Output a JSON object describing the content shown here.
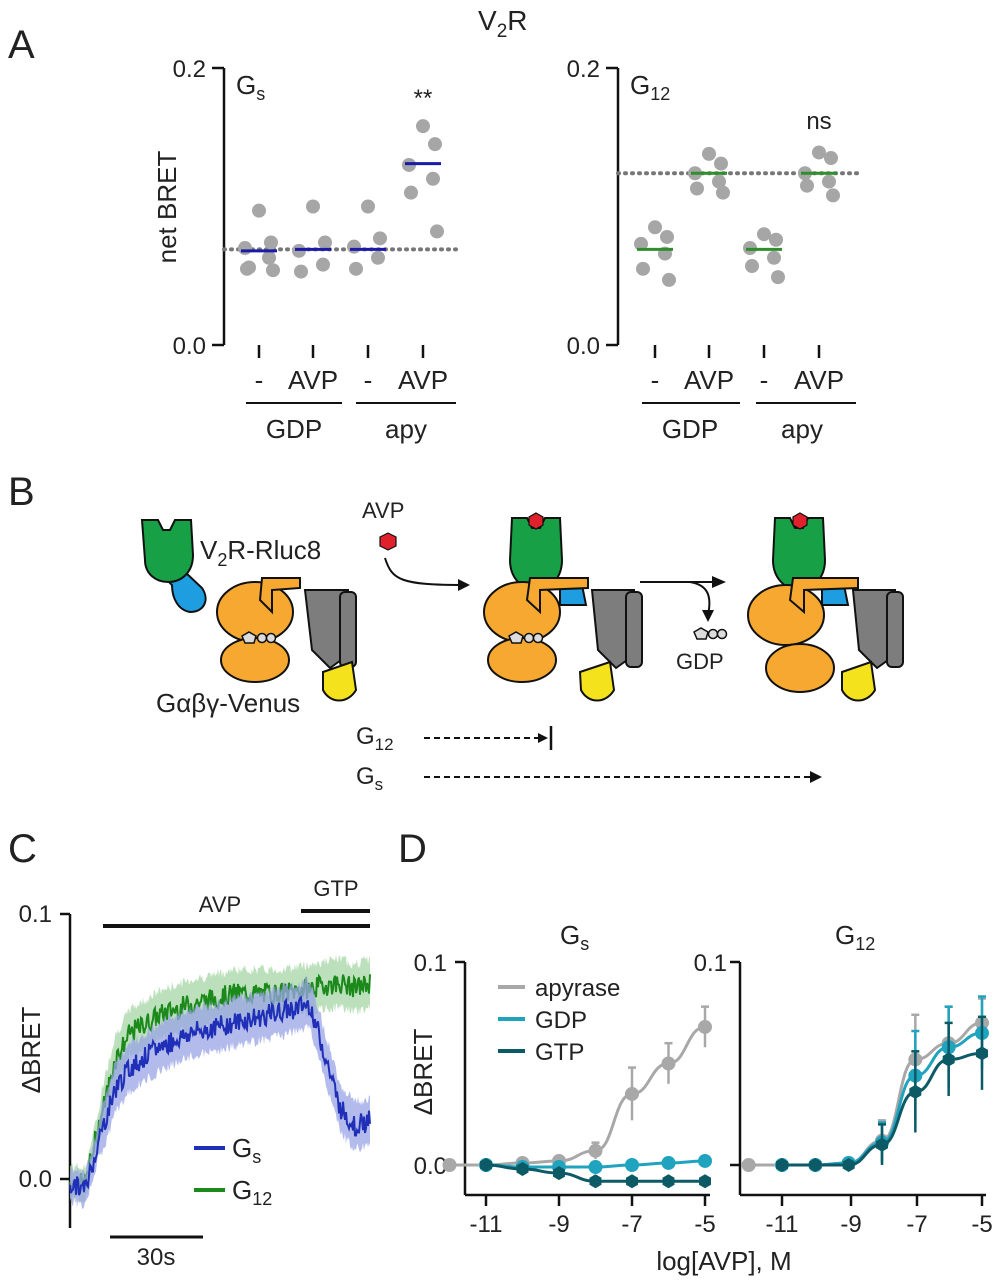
{
  "figure": {
    "panels": {
      "A": "A",
      "B": "B",
      "C": "C",
      "D": "D"
    },
    "panel_a_title": {
      "main": "V",
      "sub": "2",
      "rest": "R"
    },
    "colors": {
      "dots": "#a6a6a6",
      "gs_mean": "#1a1aa6",
      "g12_mean": "#2f8f2f",
      "gs_trace": "#1f2fb8",
      "gs_band": "#9aa4e6",
      "g12_trace": "#1b8a1b",
      "g12_band": "#a5d6a5",
      "apyrase": "#a8a8a8",
      "gdp": "#1fa3be",
      "gtp": "#0c5a66",
      "receptor": "#17a046",
      "rluc": "#1e9de0",
      "galpha": "#f7a830",
      "gbeta": "#7d7d7d",
      "venus": "#f4e21c",
      "avp": "#e0202a"
    }
  },
  "panel_a": {
    "ylabel": "net BRET",
    "yticks": [
      "0.0",
      "0.2"
    ],
    "x_labels": [
      "-",
      "AVP",
      "-",
      "AVP"
    ],
    "groups": [
      "GDP",
      "apy"
    ],
    "subplots": [
      {
        "name": "G",
        "sub": "s",
        "annotation": "**"
      },
      {
        "name": "G",
        "sub": "12",
        "annotation": "ns"
      }
    ]
  },
  "panel_b": {
    "receptor_label": {
      "a": "V",
      "sub": "2",
      "b": "R-Rluc8"
    },
    "g_label": "Gαβγ-Venus",
    "avp_label": "AVP",
    "gdp_label": "GDP",
    "g12_label": {
      "a": "G",
      "sub": "12"
    },
    "gs_label": {
      "a": "G",
      "sub": "s"
    }
  },
  "panel_c": {
    "ylabel": "ΔBRET",
    "yticks": [
      "0.0",
      "0.1"
    ],
    "avp_bar": "AVP",
    "gtp_bar": "GTP",
    "scale_bar": "30s",
    "legend": [
      {
        "name": "G",
        "sub": "s"
      },
      {
        "name": "G",
        "sub": "12"
      }
    ]
  },
  "panel_d": {
    "ylabel": "ΔBRET",
    "xlabel": "log[AVP], M",
    "yticks": [
      "0.0",
      "0.1"
    ],
    "xticks": [
      "-11",
      "-9",
      "-7",
      "-5"
    ],
    "subplots": [
      {
        "name": "G",
        "sub": "s"
      },
      {
        "name": "G",
        "sub": "12"
      }
    ],
    "legend": [
      "apyrase",
      "GDP",
      "GTP"
    ]
  },
  "chart_data": [
    {
      "panel": "A-left",
      "type": "scatter",
      "title": "Gs",
      "ylabel": "net BRET",
      "ylim": [
        0,
        0.2
      ],
      "categories": [
        "GDP -",
        "GDP AVP",
        "apy -",
        "apy AVP"
      ],
      "points": [
        [
          0.097,
          0.074,
          0.07,
          0.063,
          0.055,
          0.054,
          0.056
        ],
        [
          0.1,
          0.074,
          0.068,
          0.058,
          0.053
        ],
        [
          0.1,
          0.077,
          0.071,
          0.063,
          0.055
        ],
        [
          0.158,
          0.145,
          0.13,
          0.12,
          0.11,
          0.082
        ]
      ],
      "means": [
        0.068,
        0.069,
        0.069,
        0.131
      ],
      "baseline": 0.069
    },
    {
      "panel": "A-right",
      "type": "scatter",
      "title": "G12",
      "ylabel": "net BRET",
      "ylim": [
        0,
        0.2
      ],
      "categories": [
        "GDP -",
        "GDP AVP",
        "apy -",
        "apy AVP"
      ],
      "points": [
        [
          0.085,
          0.078,
          0.073,
          0.066,
          0.055,
          0.047
        ],
        [
          0.138,
          0.131,
          0.124,
          0.118,
          0.113,
          0.11
        ],
        [
          0.08,
          0.076,
          0.07,
          0.063,
          0.057,
          0.049
        ],
        [
          0.139,
          0.135,
          0.124,
          0.118,
          0.115,
          0.108
        ]
      ],
      "means": [
        0.069,
        0.124,
        0.069,
        0.124
      ],
      "baseline": 0.124
    },
    {
      "panel": "C",
      "type": "line",
      "ylabel": "ΔBRET",
      "ylim": [
        -0.015,
        0.1
      ],
      "x_unit": "s",
      "series": [
        {
          "name": "Gs",
          "x": [
            0,
            5,
            10,
            15,
            20,
            30,
            40,
            55,
            70,
            80,
            90,
            95,
            100
          ],
          "values": [
            -0.002,
            -0.004,
            0.016,
            0.034,
            0.042,
            0.05,
            0.055,
            0.059,
            0.063,
            0.066,
            0.027,
            0.02,
            0.022
          ]
        },
        {
          "name": "G12",
          "x": [
            0,
            5,
            10,
            15,
            20,
            30,
            40,
            55,
            70,
            80,
            90,
            95,
            100
          ],
          "values": [
            -0.001,
            -0.002,
            0.022,
            0.045,
            0.055,
            0.062,
            0.066,
            0.07,
            0.07,
            0.072,
            0.074,
            0.072,
            0.074
          ]
        }
      ]
    },
    {
      "panel": "D-left",
      "type": "line",
      "title": "Gs",
      "xlabel": "log[AVP], M",
      "ylabel": "ΔBRET",
      "ylim": [
        -0.01,
        0.1
      ],
      "x": [
        -12,
        -11,
        -10,
        -9,
        -8,
        -7,
        -6,
        -5
      ],
      "series": [
        {
          "name": "apyrase",
          "values": [
            0.0,
            0.0,
            0.001,
            0.002,
            0.007,
            0.035,
            0.05,
            0.068
          ],
          "err": [
            0,
            0,
            0,
            0,
            0.004,
            0.013,
            0.01,
            0.01
          ]
        },
        {
          "name": "GDP",
          "values": [
            null,
            0.0,
            -0.001,
            -0.001,
            -0.001,
            0.0,
            0.001,
            0.002
          ],
          "err": [
            0,
            0,
            0,
            0,
            0,
            0,
            0,
            0
          ]
        },
        {
          "name": "GTP",
          "values": [
            null,
            0.0,
            -0.002,
            -0.004,
            -0.008,
            -0.008,
            -0.008,
            -0.008
          ],
          "err": [
            0,
            0,
            0,
            0,
            0,
            0,
            0,
            0
          ]
        }
      ]
    },
    {
      "panel": "D-right",
      "type": "line",
      "title": "G12",
      "xlabel": "log[AVP], M",
      "ylabel": "ΔBRET",
      "ylim": [
        -0.01,
        0.1
      ],
      "x": [
        -12,
        -11,
        -10,
        -9,
        -8,
        -7,
        -6,
        -5
      ],
      "series": [
        {
          "name": "apyrase",
          "values": [
            0.0,
            0.0,
            0.0,
            0.001,
            0.012,
            0.052,
            0.06,
            0.07
          ],
          "err": [
            0,
            0,
            0,
            0,
            0.01,
            0.022,
            0.018,
            0.012
          ]
        },
        {
          "name": "GDP",
          "values": [
            null,
            0.0,
            0.0,
            0.001,
            0.011,
            0.044,
            0.058,
            0.065
          ],
          "err": [
            0,
            0,
            0,
            0,
            0.01,
            0.022,
            0.02,
            0.018
          ]
        },
        {
          "name": "GTP",
          "values": [
            null,
            0.0,
            0.0,
            0.0,
            0.01,
            0.036,
            0.052,
            0.055
          ],
          "err": [
            0,
            0,
            0,
            0,
            0.01,
            0.02,
            0.018,
            0.018
          ]
        }
      ]
    }
  ]
}
